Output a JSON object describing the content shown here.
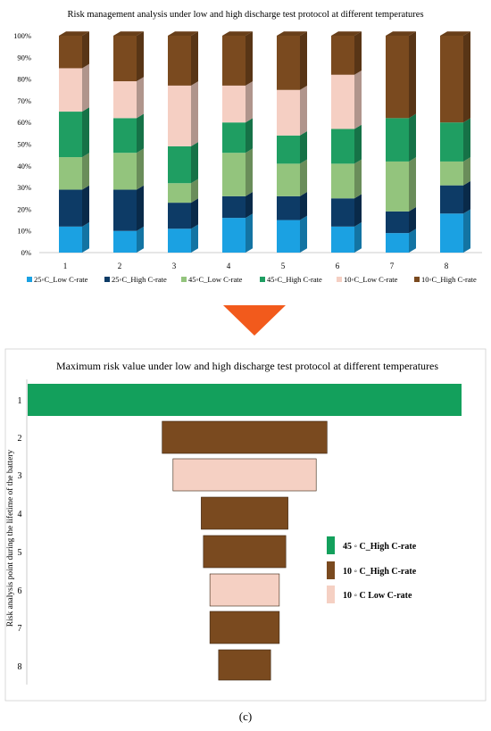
{
  "chart_data": [
    {
      "type": "bar",
      "stacked": true,
      "title": "Risk management analysis under low and high discharge test protocol at different temperatures",
      "categories": [
        "1",
        "2",
        "3",
        "4",
        "5",
        "6",
        "7",
        "8"
      ],
      "y_ticks": [
        "0%",
        "10%",
        "20%",
        "30%",
        "40%",
        "50%",
        "60%",
        "70%",
        "80%",
        "90%",
        "100%"
      ],
      "ylim": [
        0,
        100
      ],
      "legend_position": "bottom",
      "series": [
        {
          "name": "25◦C_Low C-rate",
          "color": "#1ba1e2",
          "values": [
            12,
            10,
            11,
            16,
            15,
            12,
            9,
            18
          ]
        },
        {
          "name": "25◦C_High C-rate",
          "color": "#0d3b66",
          "values": [
            17,
            19,
            12,
            10,
            11,
            13,
            10,
            13
          ]
        },
        {
          "name": "45◦C_Low C-rate",
          "color": "#93c47d",
          "values": [
            15,
            17,
            9,
            20,
            15,
            16,
            23,
            11
          ]
        },
        {
          "name": "45◦C_High C-rate",
          "color": "#1f9e62",
          "values": [
            21,
            16,
            17,
            14,
            13,
            16,
            20,
            18
          ]
        },
        {
          "name": "10◦C_Low C-rate",
          "color": "#f5cfc3",
          "values": [
            20,
            17,
            28,
            17,
            21,
            25,
            0,
            0
          ]
        },
        {
          "name": "10◦C_High C-rate",
          "color": "#7a4a1f",
          "values": [
            15,
            21,
            23,
            23,
            25,
            18,
            38,
            40
          ]
        }
      ]
    },
    {
      "type": "bar",
      "orientation": "horizontal",
      "title": "Maximum risk value under low and high discharge test protocol at different  temperatures",
      "ylabel": "Risk analysis point during the lifetime of the battery",
      "categories": [
        "1",
        "2",
        "3",
        "4",
        "5",
        "6",
        "7",
        "8"
      ],
      "values": [
        100,
        38,
        33,
        20,
        19,
        16,
        16,
        12
      ],
      "series_of_bar": [
        "45 ◦ C_High C-rate",
        "10 ◦ C_High C-rate",
        "10 ◦ C  Low C-rate",
        "10 ◦ C_High C-rate",
        "10 ◦ C_High C-rate",
        "10 ◦ C  Low C-rate",
        "10 ◦ C_High C-rate",
        "10 ◦ C_High C-rate"
      ],
      "legend_position": "right",
      "legend": [
        {
          "label": "45 ◦ C_High C-rate",
          "color": "#13a05c"
        },
        {
          "label": "10 ◦ C_High C-rate",
          "color": "#7a4a1f"
        },
        {
          "label": "10 ◦ C  Low C-rate",
          "color": "#f5d0c3"
        }
      ]
    }
  ],
  "arrow": {
    "color": "#f25a1c"
  },
  "caption": "(c)"
}
